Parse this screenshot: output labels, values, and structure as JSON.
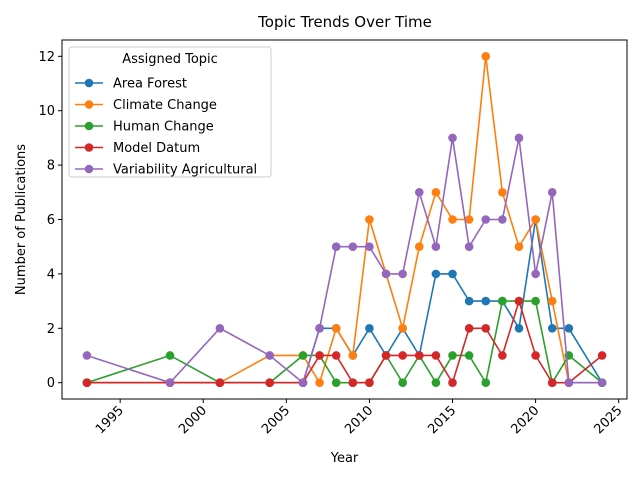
{
  "chart_data": {
    "type": "line",
    "title": "Topic Trends Over Time",
    "xlabel": "Year",
    "ylabel": "Number of Publications",
    "xlim": [
      1991.5,
      2025.5
    ],
    "ylim": [
      -0.6,
      12.6
    ],
    "xticks": [
      1995,
      2000,
      2005,
      2010,
      2015,
      2020,
      2025
    ],
    "yticks": [
      0,
      2,
      4,
      6,
      8,
      10,
      12
    ],
    "legend": {
      "title": "Assigned Topic",
      "position": "top-left"
    },
    "grid": false,
    "series": [
      {
        "name": "Area Forest",
        "color": "#1f77b4",
        "points": [
          [
            1993,
            0
          ],
          [
            1998,
            0
          ],
          [
            2001,
            0
          ],
          [
            2004,
            0
          ],
          [
            2006,
            0
          ],
          [
            2007,
            2
          ],
          [
            2008,
            2
          ],
          [
            2009,
            1
          ],
          [
            2010,
            2
          ],
          [
            2011,
            1
          ],
          [
            2012,
            2
          ],
          [
            2013,
            1
          ],
          [
            2014,
            4
          ],
          [
            2015,
            4
          ],
          [
            2016,
            3
          ],
          [
            2017,
            3
          ],
          [
            2018,
            3
          ],
          [
            2019,
            2
          ],
          [
            2020,
            6
          ],
          [
            2021,
            2
          ],
          [
            2022,
            2
          ],
          [
            2024,
            0
          ]
        ]
      },
      {
        "name": "Climate Change",
        "color": "#ff7f0e",
        "points": [
          [
            1993,
            0
          ],
          [
            1998,
            0
          ],
          [
            2001,
            0
          ],
          [
            2004,
            1
          ],
          [
            2006,
            1
          ],
          [
            2007,
            0
          ],
          [
            2008,
            2
          ],
          [
            2009,
            1
          ],
          [
            2010,
            6
          ],
          [
            2011,
            4
          ],
          [
            2012,
            2
          ],
          [
            2013,
            5
          ],
          [
            2014,
            7
          ],
          [
            2015,
            6
          ],
          [
            2016,
            6
          ],
          [
            2017,
            12
          ],
          [
            2018,
            7
          ],
          [
            2019,
            5
          ],
          [
            2020,
            6
          ],
          [
            2021,
            3
          ],
          [
            2022,
            0
          ],
          [
            2024,
            0
          ]
        ]
      },
      {
        "name": "Human Change",
        "color": "#2ca02c",
        "points": [
          [
            1993,
            0
          ],
          [
            1998,
            1
          ],
          [
            2001,
            0
          ],
          [
            2004,
            0
          ],
          [
            2006,
            1
          ],
          [
            2007,
            1
          ],
          [
            2008,
            0
          ],
          [
            2009,
            0
          ],
          [
            2010,
            0
          ],
          [
            2011,
            1
          ],
          [
            2012,
            0
          ],
          [
            2013,
            1
          ],
          [
            2014,
            0
          ],
          [
            2015,
            1
          ],
          [
            2016,
            1
          ],
          [
            2017,
            0
          ],
          [
            2018,
            3
          ],
          [
            2019,
            3
          ],
          [
            2020,
            3
          ],
          [
            2021,
            0
          ],
          [
            2022,
            1
          ],
          [
            2024,
            0
          ]
        ]
      },
      {
        "name": "Model Datum",
        "color": "#d62728",
        "points": [
          [
            1993,
            0
          ],
          [
            1998,
            0
          ],
          [
            2001,
            0
          ],
          [
            2004,
            0
          ],
          [
            2006,
            0
          ],
          [
            2007,
            1
          ],
          [
            2008,
            1
          ],
          [
            2009,
            0
          ],
          [
            2010,
            0
          ],
          [
            2011,
            1
          ],
          [
            2012,
            1
          ],
          [
            2013,
            1
          ],
          [
            2014,
            1
          ],
          [
            2015,
            0
          ],
          [
            2016,
            2
          ],
          [
            2017,
            2
          ],
          [
            2018,
            1
          ],
          [
            2019,
            3
          ],
          [
            2020,
            1
          ],
          [
            2021,
            0
          ],
          [
            2022,
            0
          ],
          [
            2024,
            1
          ]
        ]
      },
      {
        "name": "Variability Agricultural",
        "color": "#9467bd",
        "points": [
          [
            1993,
            1
          ],
          [
            1998,
            0
          ],
          [
            2001,
            2
          ],
          [
            2004,
            1
          ],
          [
            2006,
            0
          ],
          [
            2007,
            2
          ],
          [
            2008,
            5
          ],
          [
            2009,
            5
          ],
          [
            2010,
            5
          ],
          [
            2011,
            4
          ],
          [
            2012,
            4
          ],
          [
            2013,
            7
          ],
          [
            2014,
            5
          ],
          [
            2015,
            9
          ],
          [
            2016,
            5
          ],
          [
            2017,
            6
          ],
          [
            2018,
            6
          ],
          [
            2019,
            9
          ],
          [
            2020,
            4
          ],
          [
            2021,
            7
          ],
          [
            2022,
            0
          ],
          [
            2024,
            0
          ]
        ]
      }
    ]
  }
}
